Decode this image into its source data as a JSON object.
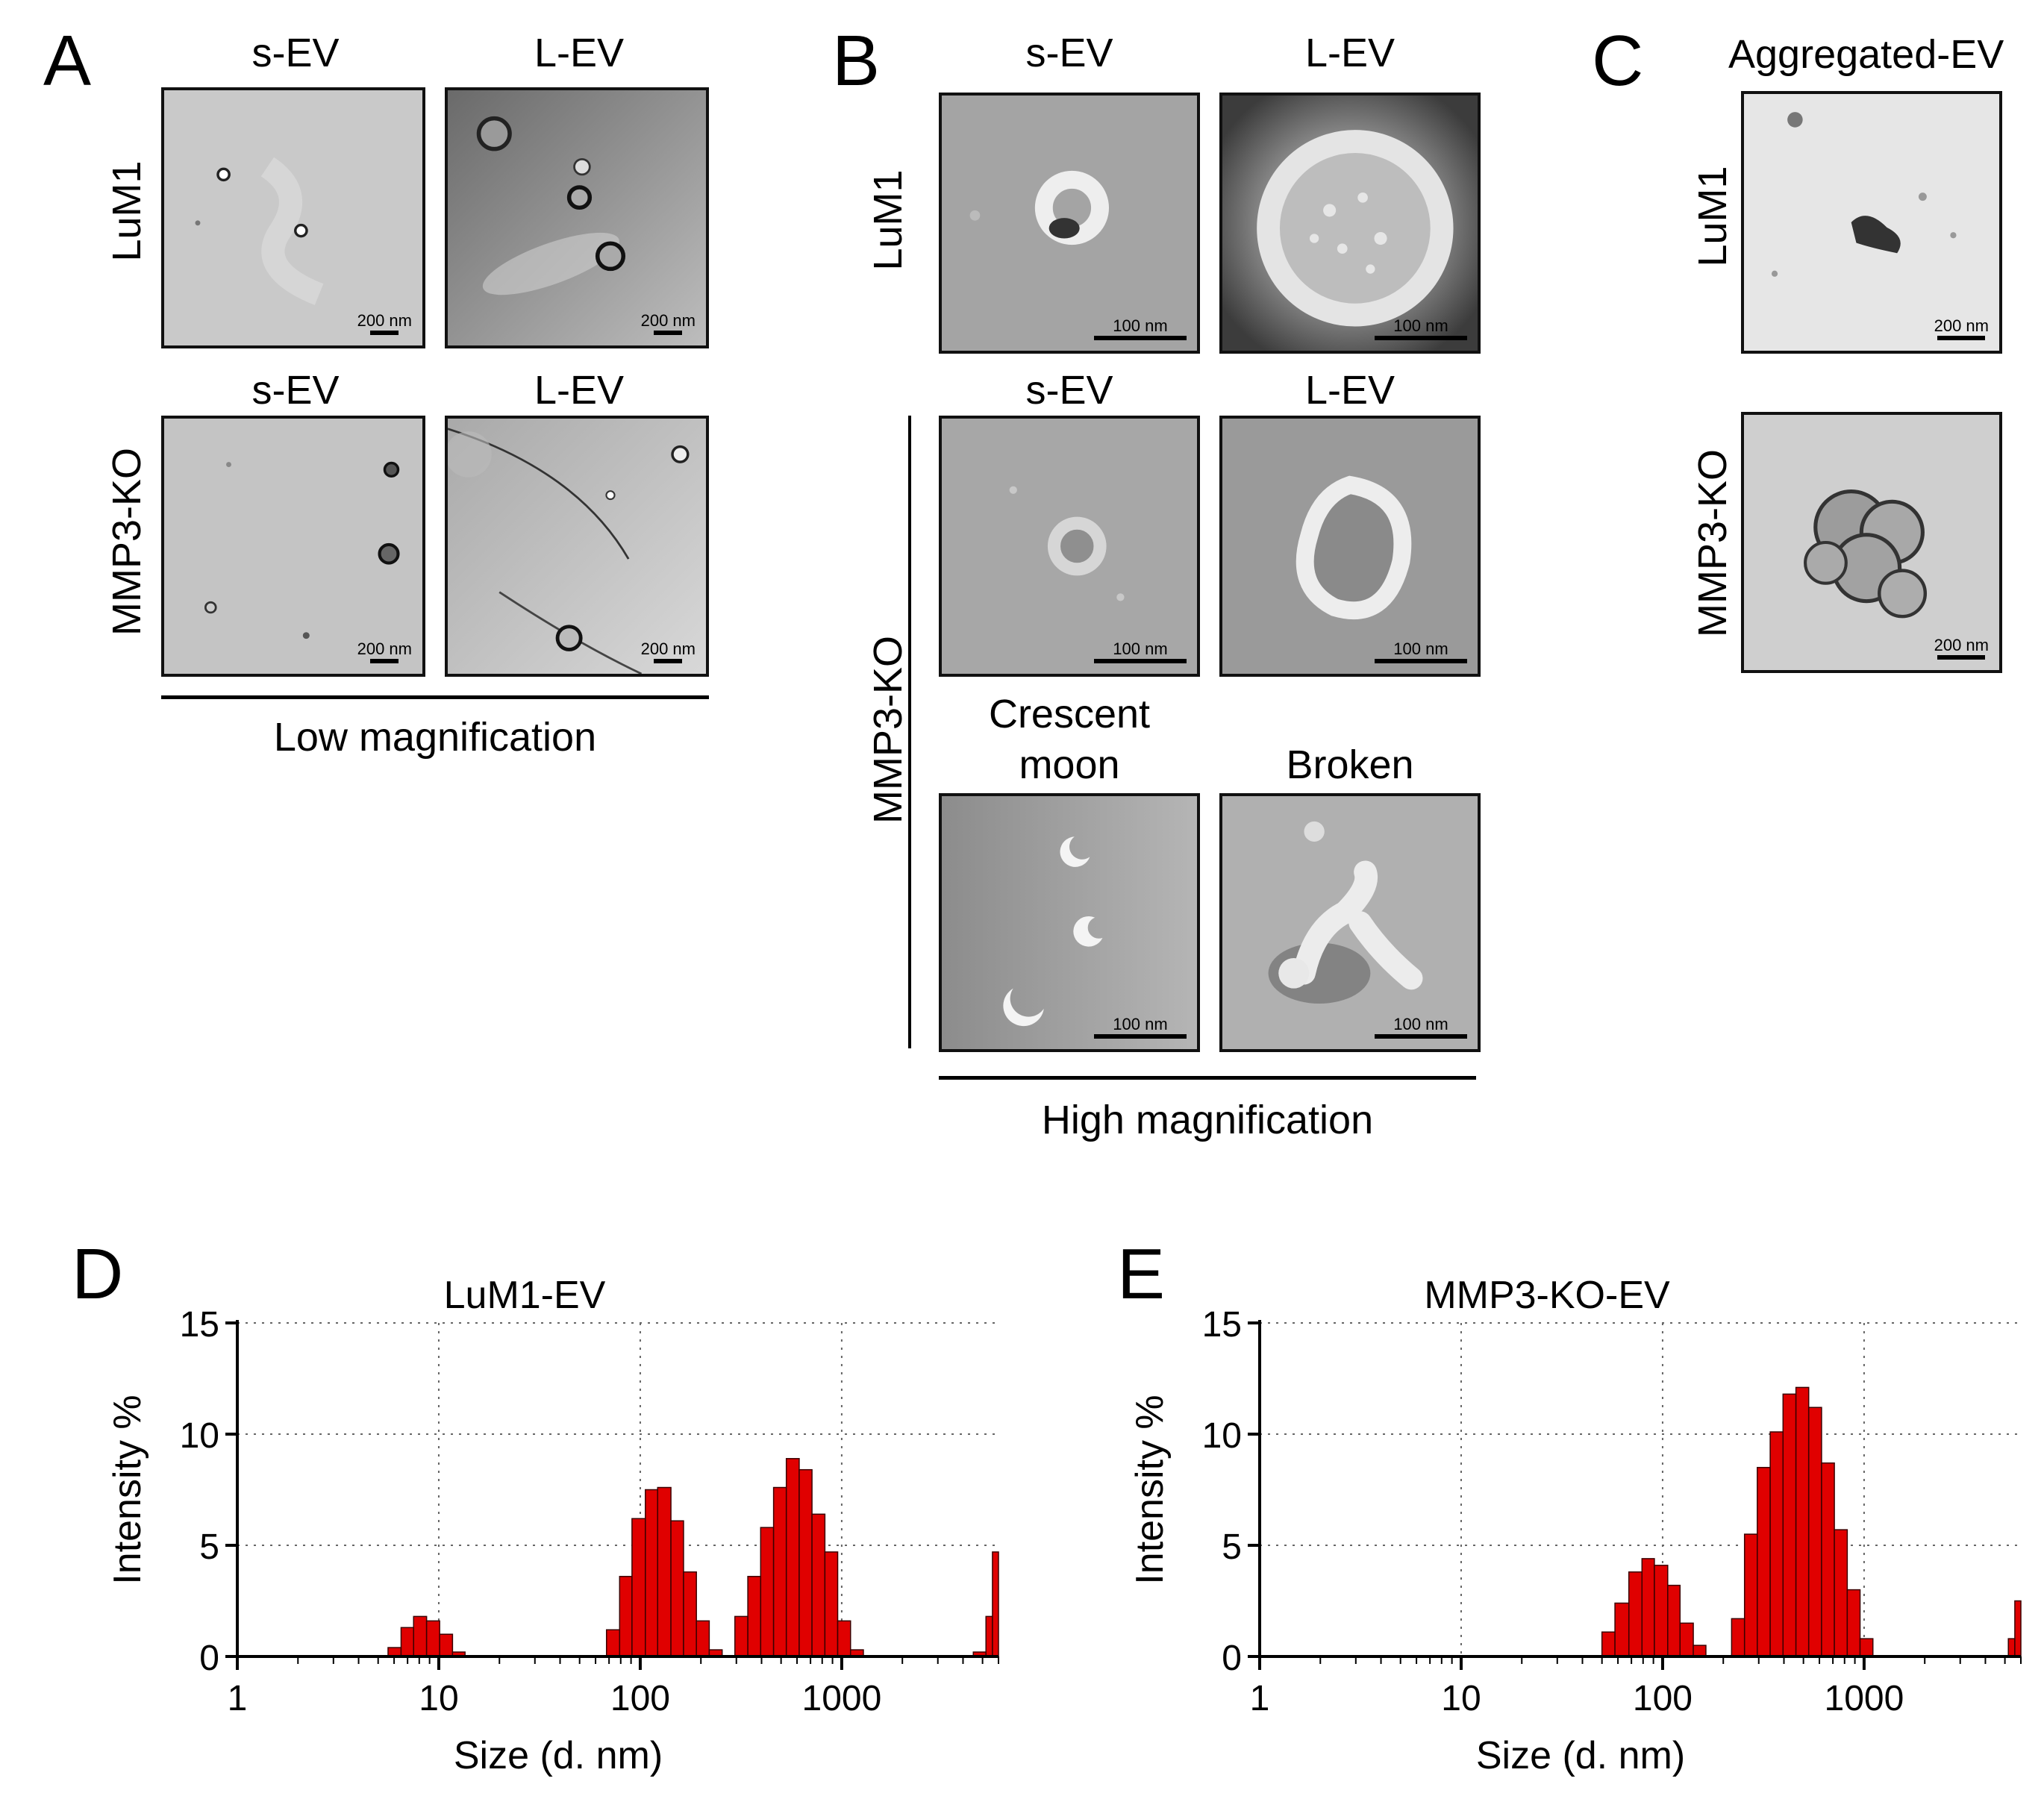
{
  "panels": {
    "A": {
      "letter": "A",
      "columns": [
        "s-EV",
        "L-EV"
      ],
      "columns_row2": [
        "s-EV",
        "L-EV"
      ],
      "rows": [
        "LuM1",
        "MMP3-KO"
      ],
      "scale_labels": [
        "200 nm",
        "200 nm",
        "200 nm",
        "200 nm"
      ],
      "footer": "Low magnification"
    },
    "B": {
      "letter": "B",
      "columns": [
        "s-EV",
        "L-EV"
      ],
      "columns_row2": [
        "s-EV",
        "L-EV"
      ],
      "row3_labels": [
        "Crescent",
        "moon",
        "Broken"
      ],
      "rows": [
        "LuM1",
        "MMP3-KO"
      ],
      "scale_labels": [
        "100 nm",
        "100 nm",
        "100 nm",
        "100 nm",
        "100 nm",
        "100 nm"
      ],
      "footer": "High magnification"
    },
    "C": {
      "letter": "C",
      "title": "Aggregated-EV",
      "rows": [
        "LuM1",
        "MMP3-KO"
      ],
      "scale_labels": [
        "200 nm",
        "200 nm"
      ]
    },
    "D": {
      "letter": "D"
    },
    "E": {
      "letter": "E"
    }
  },
  "chart_data": [
    {
      "type": "bar",
      "title": "LuM1-EV",
      "xlabel": "Size (d. nm)",
      "ylabel": "Intensity %",
      "xscale": "log",
      "xlim": [
        1,
        6000
      ],
      "ylim": [
        0,
        15
      ],
      "xticks": [
        "1",
        "10",
        "100",
        "1000"
      ],
      "yticks": [
        "0",
        "5",
        "10",
        "15"
      ],
      "grid": true,
      "bar_color": "#e00000",
      "bins": [
        {
          "from": 5.6,
          "to": 6.5,
          "value": 0.4
        },
        {
          "from": 6.5,
          "to": 7.5,
          "value": 1.3
        },
        {
          "from": 7.5,
          "to": 8.7,
          "value": 1.8
        },
        {
          "from": 8.7,
          "to": 10.1,
          "value": 1.6
        },
        {
          "from": 10.1,
          "to": 11.7,
          "value": 1.0
        },
        {
          "from": 11.7,
          "to": 13.5,
          "value": 0.2
        },
        {
          "from": 68,
          "to": 79,
          "value": 1.2
        },
        {
          "from": 79,
          "to": 91,
          "value": 3.6
        },
        {
          "from": 91,
          "to": 106,
          "value": 6.2
        },
        {
          "from": 106,
          "to": 122,
          "value": 7.5
        },
        {
          "from": 122,
          "to": 142,
          "value": 7.6
        },
        {
          "from": 142,
          "to": 164,
          "value": 6.1
        },
        {
          "from": 164,
          "to": 190,
          "value": 3.8
        },
        {
          "from": 190,
          "to": 220,
          "value": 1.6
        },
        {
          "from": 220,
          "to": 255,
          "value": 0.3
        },
        {
          "from": 295,
          "to": 342,
          "value": 1.8
        },
        {
          "from": 342,
          "to": 396,
          "value": 3.6
        },
        {
          "from": 396,
          "to": 459,
          "value": 5.8
        },
        {
          "from": 459,
          "to": 531,
          "value": 7.6
        },
        {
          "from": 531,
          "to": 615,
          "value": 8.9
        },
        {
          "from": 615,
          "to": 712,
          "value": 8.4
        },
        {
          "from": 712,
          "to": 825,
          "value": 6.4
        },
        {
          "from": 825,
          "to": 955,
          "value": 4.7
        },
        {
          "from": 955,
          "to": 1106,
          "value": 1.6
        },
        {
          "from": 1106,
          "to": 1281,
          "value": 0.3
        },
        {
          "from": 4500,
          "to": 5200,
          "value": 0.2
        },
        {
          "from": 5200,
          "to": 5600,
          "value": 1.8
        },
        {
          "from": 5600,
          "to": 6000,
          "value": 4.7
        }
      ]
    },
    {
      "type": "bar",
      "title": "MMP3-KO-EV",
      "xlabel": "Size (d. nm)",
      "ylabel": "Intensity %",
      "xscale": "log",
      "xlim": [
        1,
        6000
      ],
      "ylim": [
        0,
        15
      ],
      "xticks": [
        "1",
        "10",
        "100",
        "1000"
      ],
      "yticks": [
        "0",
        "5",
        "10",
        "15"
      ],
      "grid": true,
      "bar_color": "#e00000",
      "bins": [
        {
          "from": 50,
          "to": 58,
          "value": 1.1
        },
        {
          "from": 58,
          "to": 68,
          "value": 2.4
        },
        {
          "from": 68,
          "to": 79,
          "value": 3.8
        },
        {
          "from": 79,
          "to": 91,
          "value": 4.4
        },
        {
          "from": 91,
          "to": 106,
          "value": 4.1
        },
        {
          "from": 106,
          "to": 122,
          "value": 3.2
        },
        {
          "from": 122,
          "to": 142,
          "value": 1.5
        },
        {
          "from": 142,
          "to": 164,
          "value": 0.5
        },
        {
          "from": 220,
          "to": 255,
          "value": 1.7
        },
        {
          "from": 255,
          "to": 295,
          "value": 5.5
        },
        {
          "from": 295,
          "to": 342,
          "value": 8.5
        },
        {
          "from": 342,
          "to": 396,
          "value": 10.1
        },
        {
          "from": 396,
          "to": 459,
          "value": 11.8
        },
        {
          "from": 459,
          "to": 531,
          "value": 12.1
        },
        {
          "from": 531,
          "to": 615,
          "value": 11.2
        },
        {
          "from": 615,
          "to": 712,
          "value": 8.7
        },
        {
          "from": 712,
          "to": 825,
          "value": 5.7
        },
        {
          "from": 825,
          "to": 955,
          "value": 3.0
        },
        {
          "from": 955,
          "to": 1106,
          "value": 0.8
        },
        {
          "from": 5200,
          "to": 5600,
          "value": 0.8
        },
        {
          "from": 5600,
          "to": 6000,
          "value": 2.5
        }
      ]
    }
  ]
}
